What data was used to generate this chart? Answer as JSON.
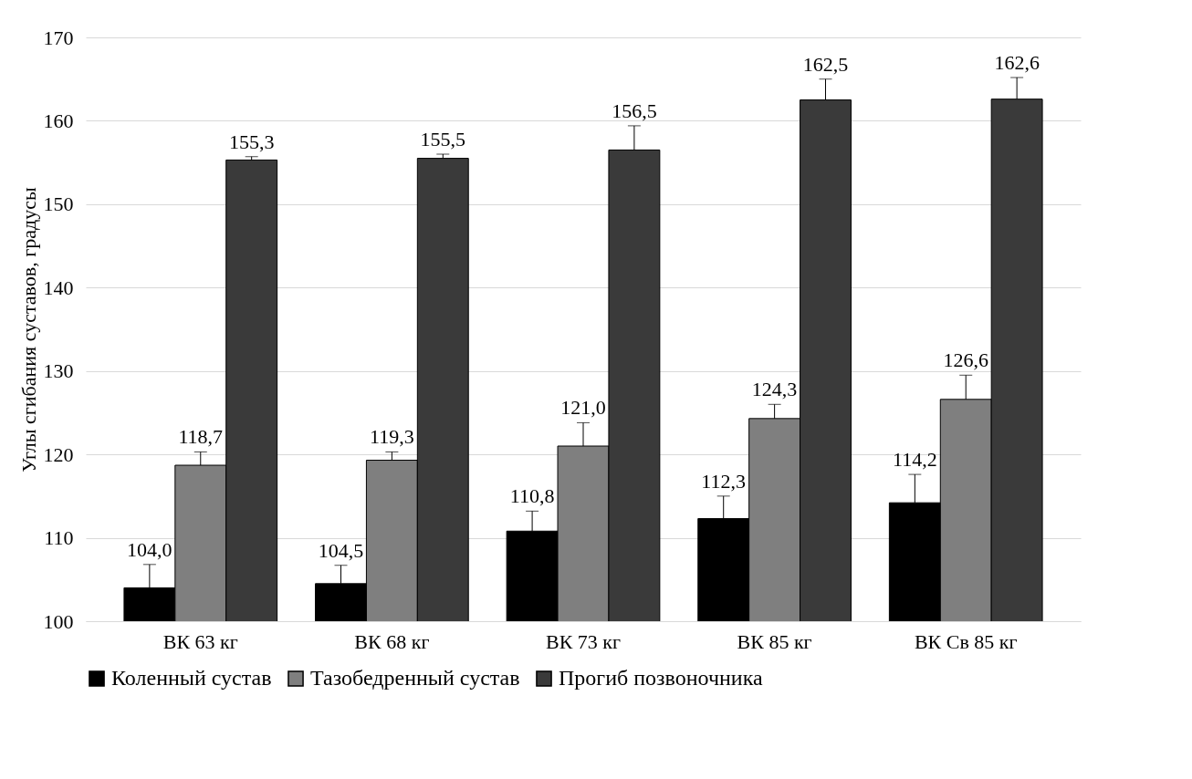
{
  "chart_data": {
    "type": "bar",
    "ylabel": "Углы сгибания суставов, градусы",
    "categories": [
      "ВК 63 кг",
      "ВК 68 кг",
      "ВК 73 кг",
      "ВК 85 кг",
      "ВК Св 85 кг"
    ],
    "series": [
      {
        "name": "Коленный сустав",
        "color": "#000000",
        "values": [
          104.0,
          104.5,
          110.8,
          112.3,
          114.2
        ],
        "value_labels": [
          "104,0",
          "104,5",
          "110,8",
          "112,3",
          "114,2"
        ],
        "errors": [
          [
            104.0,
            106.8
          ],
          [
            104.5,
            106.7
          ],
          [
            110.8,
            113.2
          ],
          [
            112.3,
            115.0
          ],
          [
            114.2,
            117.6
          ]
        ]
      },
      {
        "name": "Тазобедренный сустав",
        "color": "#7f7f7f",
        "values": [
          118.7,
          119.3,
          121.0,
          124.3,
          126.6
        ],
        "value_labels": [
          "118,7",
          "119,3",
          "121,0",
          "124,3",
          "126,6"
        ],
        "errors": [
          [
            118.7,
            120.3
          ],
          [
            119.3,
            120.3
          ],
          [
            121.0,
            123.8
          ],
          [
            124.3,
            126.0
          ],
          [
            126.6,
            129.5
          ]
        ]
      },
      {
        "name": "Прогиб позвоночника",
        "color": "#3a3a3a",
        "values": [
          155.3,
          155.5,
          156.5,
          162.5,
          162.6
        ],
        "value_labels": [
          "155,3",
          "155,5",
          "156,5",
          "162,5",
          "162,6"
        ],
        "errors": [
          [
            155.3,
            155.7
          ],
          [
            155.5,
            156.0
          ],
          [
            156.5,
            159.4
          ],
          [
            162.5,
            165.0
          ],
          [
            162.6,
            165.2
          ]
        ]
      }
    ],
    "ylim": [
      100,
      170
    ],
    "yticks": [
      100,
      110,
      120,
      130,
      140,
      150,
      160,
      170
    ],
    "grid": "y",
    "legend": "bottom"
  }
}
